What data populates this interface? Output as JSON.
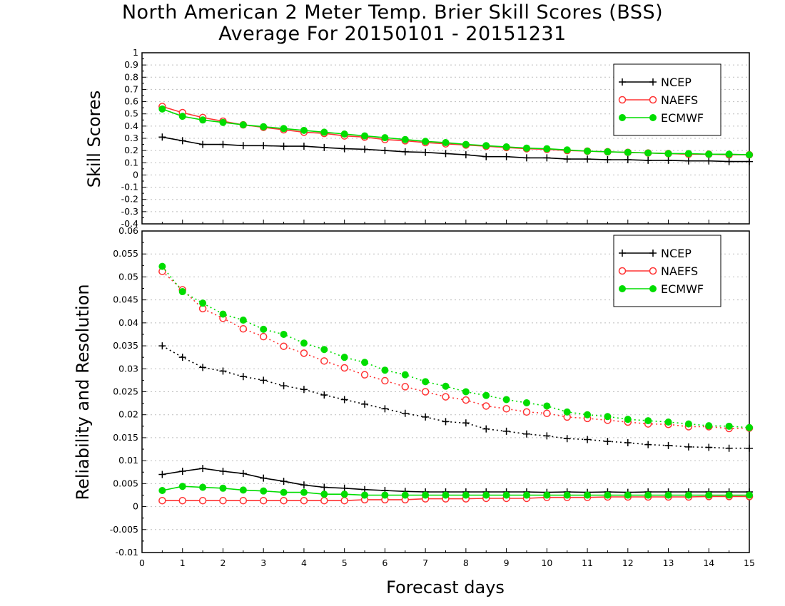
{
  "chart_data": [
    {
      "type": "line",
      "title": "North American 2 Meter Temp. Brier Skill Scores (BSS)",
      "subtitle": "Average For 20150101 - 20151231",
      "xlabel": "Forecast days",
      "ylabel": "Skill Scores",
      "xlim": [
        0,
        15
      ],
      "ylim": [
        -0.4,
        1
      ],
      "xticks": [
        "0",
        "1",
        "2",
        "3",
        "4",
        "5",
        "6",
        "7",
        "8",
        "9",
        "10",
        "11",
        "12",
        "13",
        "14",
        "15"
      ],
      "yticks": [
        "-0.4",
        "-0.3",
        "-0.2",
        "-0.1",
        "0",
        "0.1",
        "0.2",
        "0.3",
        "0.4",
        "0.5",
        "0.6",
        "0.7",
        "0.8",
        "0.9",
        "1"
      ],
      "grid": true,
      "legend_position": "top-right",
      "x": [
        0.5,
        1,
        1.5,
        2,
        2.5,
        3,
        3.5,
        4,
        4.5,
        5,
        5.5,
        6,
        6.5,
        7,
        7.5,
        8,
        8.5,
        9,
        9.5,
        10,
        10.5,
        11,
        11.5,
        12,
        12.5,
        13,
        13.5,
        14,
        14.5,
        15
      ],
      "series": [
        {
          "name": "NCEP",
          "color": "#000000",
          "marker": "plus",
          "values": [
            0.31,
            0.28,
            0.25,
            0.25,
            0.24,
            0.24,
            0.235,
            0.235,
            0.225,
            0.215,
            0.21,
            0.2,
            0.19,
            0.185,
            0.175,
            0.165,
            0.15,
            0.15,
            0.14,
            0.14,
            0.13,
            0.13,
            0.125,
            0.125,
            0.12,
            0.12,
            0.115,
            0.115,
            0.11,
            0.11
          ]
        },
        {
          "name": "NAEFS",
          "color": "#ff3333",
          "marker": "open-circle",
          "values": [
            0.56,
            0.51,
            0.47,
            0.44,
            0.41,
            0.39,
            0.37,
            0.35,
            0.34,
            0.32,
            0.31,
            0.29,
            0.28,
            0.265,
            0.255,
            0.245,
            0.235,
            0.225,
            0.215,
            0.21,
            0.2,
            0.195,
            0.19,
            0.185,
            0.18,
            0.175,
            0.17,
            0.17,
            0.165,
            0.165
          ]
        },
        {
          "name": "ECMWF",
          "color": "#00dd00",
          "marker": "filled-circle",
          "values": [
            0.54,
            0.48,
            0.45,
            0.43,
            0.41,
            0.395,
            0.38,
            0.365,
            0.35,
            0.335,
            0.32,
            0.305,
            0.29,
            0.275,
            0.265,
            0.25,
            0.24,
            0.23,
            0.22,
            0.215,
            0.205,
            0.195,
            0.19,
            0.185,
            0.18,
            0.175,
            0.175,
            0.17,
            0.17,
            0.165
          ]
        }
      ]
    },
    {
      "type": "line",
      "xlabel": "Forecast days",
      "ylabel": "Reliability and Resolution",
      "xlim": [
        0,
        15
      ],
      "ylim": [
        -0.01,
        0.06
      ],
      "xticks": [
        "0",
        "1",
        "2",
        "3",
        "4",
        "5",
        "6",
        "7",
        "8",
        "9",
        "10",
        "11",
        "12",
        "13",
        "14",
        "15"
      ],
      "yticks": [
        "-0.01",
        "-0.005",
        "0",
        "0.005",
        "0.01",
        "0.015",
        "0.02",
        "0.025",
        "0.03",
        "0.035",
        "0.04",
        "0.045",
        "0.05",
        "0.055",
        "0.06"
      ],
      "grid": true,
      "legend_position": "top-right",
      "x": [
        0.5,
        1,
        1.5,
        2,
        2.5,
        3,
        3.5,
        4,
        4.5,
        5,
        5.5,
        6,
        6.5,
        7,
        7.5,
        8,
        8.5,
        9,
        9.5,
        10,
        10.5,
        11,
        11.5,
        12,
        12.5,
        13,
        13.5,
        14,
        14.5,
        15
      ],
      "series": [
        {
          "name": "NCEP",
          "color": "#000000",
          "marker": "plus",
          "dash": "dotted",
          "values": [
            0.035,
            0.0325,
            0.0303,
            0.0295,
            0.0283,
            0.0275,
            0.0263,
            0.0255,
            0.0243,
            0.0233,
            0.0223,
            0.0213,
            0.0203,
            0.0195,
            0.0185,
            0.0182,
            0.0169,
            0.0164,
            0.0158,
            0.0154,
            0.0148,
            0.0146,
            0.0142,
            0.0139,
            0.0135,
            0.0133,
            0.013,
            0.0129,
            0.0127,
            0.0127
          ]
        },
        {
          "name": "NAEFS",
          "color": "#ff3333",
          "marker": "open-circle",
          "dash": "dotted",
          "values": [
            0.0512,
            0.0472,
            0.0431,
            0.041,
            0.0387,
            0.037,
            0.0349,
            0.0334,
            0.0317,
            0.0302,
            0.0287,
            0.0274,
            0.0261,
            0.025,
            0.0239,
            0.0232,
            0.0219,
            0.0213,
            0.0206,
            0.0203,
            0.0195,
            0.0192,
            0.0188,
            0.0184,
            0.018,
            0.0179,
            0.0174,
            0.0174,
            0.017,
            0.0171
          ]
        },
        {
          "name": "ECMWF",
          "color": "#00dd00",
          "marker": "filled-circle",
          "dash": "dotted",
          "values": [
            0.0523,
            0.0468,
            0.0443,
            0.0419,
            0.0406,
            0.0386,
            0.0375,
            0.0356,
            0.0342,
            0.0325,
            0.0314,
            0.0297,
            0.0287,
            0.0272,
            0.0262,
            0.025,
            0.0242,
            0.0233,
            0.0226,
            0.0219,
            0.0206,
            0.02,
            0.0196,
            0.019,
            0.0187,
            0.0184,
            0.018,
            0.0176,
            0.0175,
            0.0172
          ]
        },
        {
          "name": "NCEP",
          "color": "#000000",
          "marker": "plus",
          "dash": "solid",
          "values": [
            0.007,
            0.0077,
            0.0083,
            0.0077,
            0.0072,
            0.0062,
            0.0055,
            0.0047,
            0.0042,
            0.004,
            0.0037,
            0.0035,
            0.0033,
            0.0032,
            0.0032,
            0.0032,
            0.0032,
            0.0032,
            0.0032,
            0.0031,
            0.0032,
            0.0031,
            0.0032,
            0.0031,
            0.0032,
            0.0032,
            0.0032,
            0.0032,
            0.0032,
            0.0032
          ]
        },
        {
          "name": "NAEFS",
          "color": "#ff3333",
          "marker": "open-circle",
          "dash": "solid",
          "values": [
            0.0013,
            0.0013,
            0.0013,
            0.0013,
            0.0013,
            0.0013,
            0.0013,
            0.0013,
            0.0013,
            0.0013,
            0.0015,
            0.0015,
            0.0015,
            0.0017,
            0.0017,
            0.0017,
            0.0018,
            0.0018,
            0.0018,
            0.002,
            0.002,
            0.002,
            0.0021,
            0.0021,
            0.0021,
            0.0021,
            0.0021,
            0.0022,
            0.0022,
            0.0022
          ]
        },
        {
          "name": "ECMWF",
          "color": "#00dd00",
          "marker": "filled-circle",
          "dash": "solid",
          "values": [
            0.0035,
            0.0044,
            0.0042,
            0.004,
            0.0036,
            0.0034,
            0.0031,
            0.0031,
            0.0027,
            0.0027,
            0.0025,
            0.0025,
            0.0025,
            0.0025,
            0.0025,
            0.0025,
            0.0025,
            0.0025,
            0.0025,
            0.0025,
            0.0025,
            0.0025,
            0.0025,
            0.0025,
            0.0025,
            0.0025,
            0.0025,
            0.0025,
            0.0025,
            0.0025
          ]
        }
      ]
    }
  ]
}
